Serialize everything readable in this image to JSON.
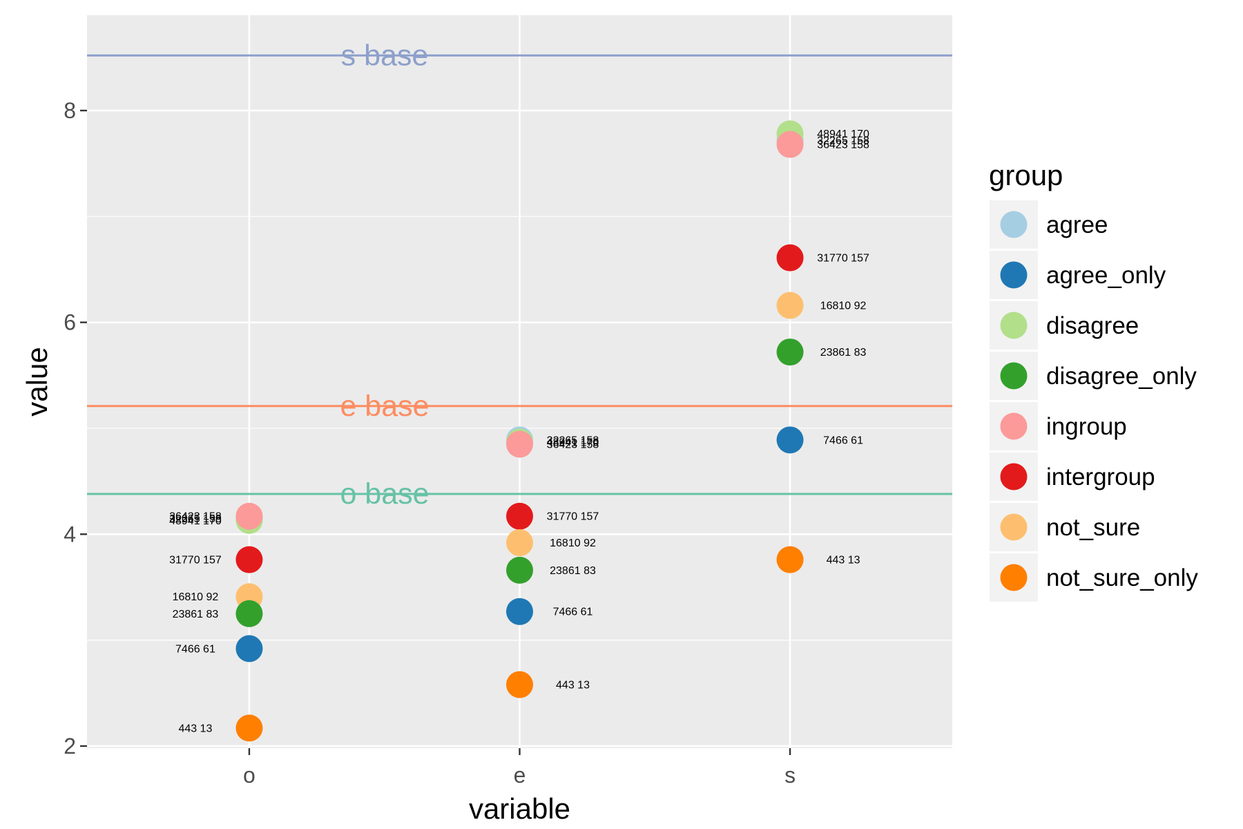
{
  "chart_data": {
    "type": "scatter",
    "title": "",
    "xlabel": "variable",
    "ylabel": "value",
    "categories": [
      "o",
      "e",
      "s"
    ],
    "ylim": [
      1.98,
      8.9
    ],
    "y_ticks": [
      2,
      4,
      6,
      8
    ],
    "grid": true,
    "legend": {
      "title": "group",
      "position": "right",
      "entries": [
        "agree",
        "agree_only",
        "disagree",
        "disagree_only",
        "ingroup",
        "intergroup",
        "not_sure",
        "not_sure_only"
      ]
    },
    "colors": {
      "agree": "#a6cee3",
      "agree_only": "#1f78b4",
      "disagree": "#b2df8a",
      "disagree_only": "#33a02c",
      "ingroup": "#fb9a99",
      "intergroup": "#e31a1c",
      "not_sure": "#fdbf6f",
      "not_sure_only": "#ff7f00"
    },
    "baselines": [
      {
        "label": "s base",
        "value": 8.52,
        "color": "#8da0cb"
      },
      {
        "label": "e base",
        "value": 5.21,
        "color": "#fc8d62"
      },
      {
        "label": "o base",
        "value": 4.38,
        "color": "#66c2a5"
      }
    ],
    "series": [
      {
        "name": "agree",
        "values": [
          4.15,
          4.89,
          7.72
        ],
        "labels": [
          "32265 158",
          "32265 158",
          "32265 158"
        ]
      },
      {
        "name": "disagree",
        "values": [
          4.13,
          4.87,
          7.78
        ],
        "labels": [
          "48941 170",
          "48941 170",
          "48941 170"
        ]
      },
      {
        "name": "ingroup",
        "values": [
          4.17,
          4.85,
          7.68
        ],
        "labels": [
          "36423 158",
          "36423 158",
          "36423 158"
        ]
      },
      {
        "name": "intergroup",
        "values": [
          3.76,
          4.17,
          6.61
        ],
        "labels": [
          "31770 157",
          "31770 157",
          "31770 157"
        ]
      },
      {
        "name": "not_sure",
        "values": [
          3.41,
          3.92,
          6.16
        ],
        "labels": [
          "16810 92",
          "16810 92",
          "16810 92"
        ]
      },
      {
        "name": "disagree_only",
        "values": [
          3.25,
          3.66,
          5.72
        ],
        "labels": [
          "23861 83",
          "23861 83",
          "23861 83"
        ]
      },
      {
        "name": "agree_only",
        "values": [
          2.92,
          3.27,
          4.89
        ],
        "labels": [
          "7466 61",
          "7466 61",
          "7466 61"
        ]
      },
      {
        "name": "not_sure_only",
        "values": [
          2.17,
          2.58,
          3.76
        ],
        "labels": [
          "443 13",
          "443 13",
          "443 13"
        ]
      }
    ]
  }
}
